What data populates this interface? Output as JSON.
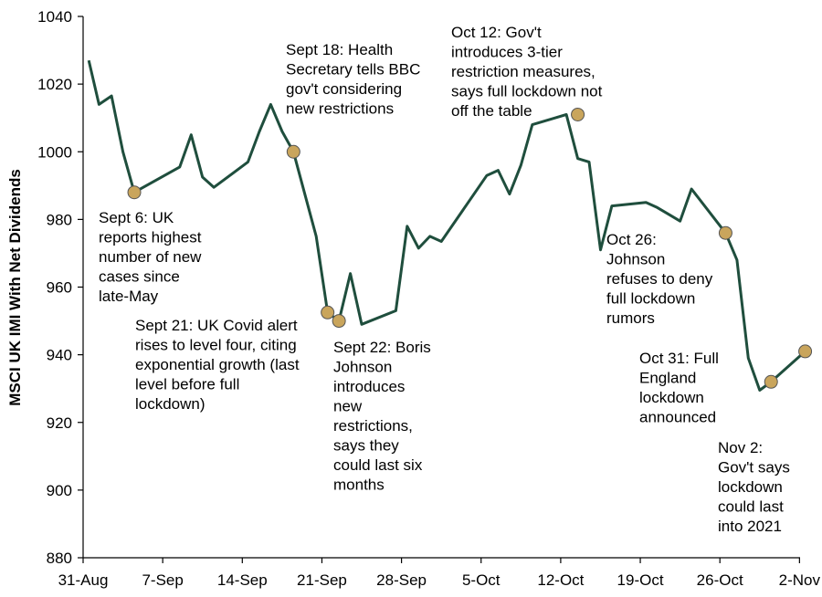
{
  "chart_data": {
    "type": "line",
    "title": "",
    "xlabel": "",
    "ylabel": "MSCI UK IMI With Net Dividends",
    "ylim": [
      880,
      1040
    ],
    "yticks": [
      880,
      900,
      920,
      940,
      960,
      980,
      1000,
      1020,
      1040
    ],
    "xlim": [
      0,
      63
    ],
    "xticks": [
      {
        "day": 0,
        "label": "31-Aug"
      },
      {
        "day": 7,
        "label": "7-Sep"
      },
      {
        "day": 14,
        "label": "14-Sep"
      },
      {
        "day": 21,
        "label": "21-Sep"
      },
      {
        "day": 28,
        "label": "28-Sep"
      },
      {
        "day": 35,
        "label": "5-Oct"
      },
      {
        "day": 42,
        "label": "12-Oct"
      },
      {
        "day": 49,
        "label": "19-Oct"
      },
      {
        "day": 56,
        "label": "26-Oct"
      },
      {
        "day": 63,
        "label": "2-Nov"
      }
    ],
    "line_color": "#1f4e3d",
    "marker_color": "#c9a55c",
    "series": [
      {
        "name": "MSCI UK IMI With Net Dividends",
        "x": [
          0.5,
          1.4,
          2.5,
          3.5,
          4.5,
          8.5,
          9.5,
          10.5,
          11.5,
          14.5,
          15.5,
          16.5,
          17.5,
          18.5,
          20.5,
          21.5,
          22.5,
          23.5,
          24.5,
          27.5,
          28.5,
          29.5,
          30.5,
          31.5,
          35.5,
          36.5,
          37.5,
          38.5,
          39.5,
          42.5,
          43.5,
          44.5,
          45.5,
          46.5,
          49.5,
          50.5,
          51.5,
          52.5,
          53.5,
          56.5,
          57.5,
          58.5,
          59.5,
          60.5,
          63.5
        ],
        "y": [
          1027,
          1014,
          1016.5,
          1000,
          988,
          995.5,
          1005,
          992.5,
          989.5,
          997,
          1006,
          1014,
          1006,
          1000,
          975,
          952.5,
          950,
          964,
          949,
          953,
          978,
          971.5,
          975,
          973.5,
          993,
          994.5,
          987.5,
          996,
          1008,
          1011,
          998,
          997,
          971,
          984,
          985,
          983.5,
          981.5,
          979.5,
          989,
          976,
          968,
          939,
          929.5,
          932,
          941
        ]
      }
    ],
    "annotations": [
      {
        "label": "Sept 6: UK reports highest number of new cases since late-May",
        "x": 4.5,
        "y": 988,
        "lines": [
          "Sept 6: UK",
          "reports highest",
          "number of new",
          "cases since",
          "late-May"
        ]
      },
      {
        "label": "Sept 18: Health Secretary tells BBC gov't considering new restrictions",
        "x": 18.5,
        "y": 1000,
        "lines": [
          "Sept 18: Health",
          "Secretary tells BBC",
          "gov't considering",
          "new restrictions"
        ]
      },
      {
        "label": "Sept 21: UK Covid alert rises to level four, citing exponential growth (last level before full lockdown)",
        "x": 21.5,
        "y": 952.5,
        "lines": [
          "Sept 21: UK Covid alert",
          "rises to level four, citing",
          "exponential growth (last",
          "level before full",
          "lockdown)"
        ]
      },
      {
        "label": "Sept 22: Boris Johnson introduces new restrictions, says they could last six months",
        "x": 22.5,
        "y": 950,
        "lines": [
          "Sept 22: Boris",
          "Johnson",
          "introduces",
          "new",
          "restrictions,",
          "says they",
          "could last six",
          "months"
        ]
      },
      {
        "label": "Oct 12: Gov't introduces 3-tier restriction measures, says full lockdown not off the table",
        "x": 43.5,
        "y": 1011,
        "lines": [
          "Oct 12: Gov't",
          "introduces 3-tier",
          "restriction measures,",
          "says full lockdown not",
          "off the table"
        ]
      },
      {
        "label": "Oct 26: Johnson refuses to deny full lockdown rumors",
        "x": 56.5,
        "y": 976,
        "lines": [
          "Oct 26:",
          "Johnson",
          "refuses to deny",
          "full lockdown",
          "rumors"
        ]
      },
      {
        "label": "Oct 31: Full England lockdown announced",
        "x": 60.5,
        "y": 932,
        "lines": [
          "Oct 31: Full",
          "England",
          "lockdown",
          "announced"
        ]
      },
      {
        "label": "Nov 2: Gov't says lockdown could last into 2021",
        "x": 63.5,
        "y": 941,
        "lines": [
          "Nov 2:",
          "Gov't says",
          "lockdown",
          "could last",
          "into 2021"
        ]
      }
    ]
  }
}
